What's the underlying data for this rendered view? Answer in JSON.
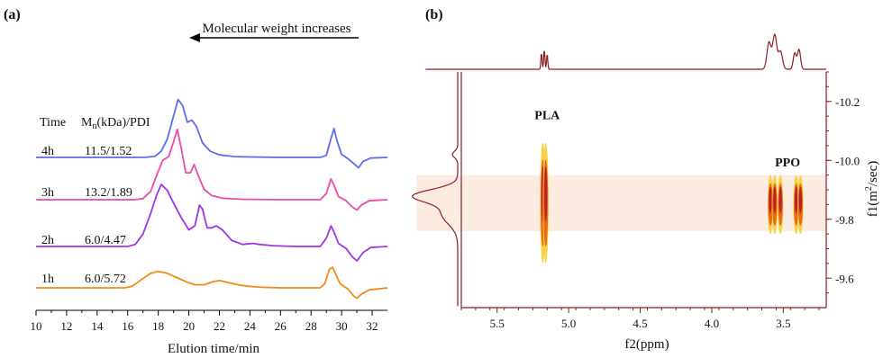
{
  "chart_data": [
    {
      "panel": "(a)",
      "type": "line",
      "xlabel": "Elution time/min",
      "xlim": [
        10,
        33
      ],
      "xticks": [
        "10",
        "12",
        "14",
        "16",
        "18",
        "20",
        "22",
        "24",
        "26",
        "28",
        "30",
        "32"
      ],
      "arrow_label": "Molecular weight increases",
      "table_header": {
        "time": "Time",
        "mn_main": "M",
        "mn_sub": "n",
        "mn_rest": "(kDa)/PDI"
      },
      "series": [
        {
          "name": "4h",
          "label": "11.5/1.52",
          "color": "#5B6CF0",
          "points": [
            [
              10,
              0
            ],
            [
              16.6,
              0
            ],
            [
              17.2,
              0.05
            ],
            [
              17.8,
              0.6
            ],
            [
              18.2,
              3
            ],
            [
              18.6,
              9
            ],
            [
              19.0,
              20
            ],
            [
              19.3,
              28
            ],
            [
              19.6,
              25
            ],
            [
              19.9,
              17
            ],
            [
              20.2,
              18
            ],
            [
              20.5,
              15
            ],
            [
              20.9,
              7
            ],
            [
              21.4,
              3
            ],
            [
              22,
              1.2
            ],
            [
              23,
              0.4
            ],
            [
              24,
              0.2
            ],
            [
              26,
              0
            ],
            [
              28.6,
              0
            ],
            [
              29.0,
              1
            ],
            [
              29.3,
              9
            ],
            [
              29.5,
              14
            ],
            [
              29.7,
              8
            ],
            [
              30.0,
              1.5
            ],
            [
              30.4,
              -0.5
            ],
            [
              30.8,
              -3
            ],
            [
              31.1,
              -5
            ],
            [
              31.4,
              -2
            ],
            [
              31.9,
              -0.3
            ],
            [
              33,
              0
            ]
          ]
        },
        {
          "name": "3h",
          "label": "13.2/1.89",
          "color": "#EC4AA4",
          "points": [
            [
              10,
              0
            ],
            [
              16.4,
              0
            ],
            [
              17.0,
              0.5
            ],
            [
              17.5,
              4
            ],
            [
              17.9,
              12
            ],
            [
              18.3,
              19
            ],
            [
              18.7,
              21
            ],
            [
              19.0,
              28
            ],
            [
              19.25,
              34
            ],
            [
              19.5,
              25
            ],
            [
              19.8,
              13
            ],
            [
              20.1,
              13
            ],
            [
              20.35,
              17
            ],
            [
              20.6,
              12
            ],
            [
              21,
              5
            ],
            [
              21.5,
              2
            ],
            [
              22.2,
              0.7
            ],
            [
              23.5,
              0.2
            ],
            [
              26,
              0
            ],
            [
              28.6,
              0
            ],
            [
              29.0,
              3
            ],
            [
              29.3,
              10
            ],
            [
              29.5,
              7
            ],
            [
              29.8,
              1.5
            ],
            [
              30.3,
              -0.5
            ],
            [
              30.7,
              -3.5
            ],
            [
              31.0,
              -5
            ],
            [
              31.3,
              -2.5
            ],
            [
              31.8,
              -0.5
            ],
            [
              33,
              0
            ]
          ]
        },
        {
          "name": "2h",
          "label": "6.0/4.47",
          "color": "#A034E8",
          "points": [
            [
              10,
              0
            ],
            [
              16.0,
              0
            ],
            [
              16.5,
              1
            ],
            [
              17.0,
              6
            ],
            [
              17.5,
              16
            ],
            [
              17.9,
              25
            ],
            [
              18.2,
              30
            ],
            [
              18.6,
              27
            ],
            [
              19.0,
              21
            ],
            [
              19.5,
              14
            ],
            [
              20.0,
              8
            ],
            [
              20.4,
              10
            ],
            [
              20.7,
              20
            ],
            [
              20.9,
              18
            ],
            [
              21.2,
              9
            ],
            [
              21.5,
              9
            ],
            [
              21.8,
              10
            ],
            [
              22.2,
              8
            ],
            [
              22.8,
              3
            ],
            [
              23.5,
              1
            ],
            [
              24.2,
              1.5
            ],
            [
              24.6,
              1
            ],
            [
              25.5,
              0.4
            ],
            [
              27,
              0
            ],
            [
              28.6,
              0
            ],
            [
              29.0,
              4
            ],
            [
              29.3,
              10
            ],
            [
              29.5,
              7
            ],
            [
              29.8,
              1.5
            ],
            [
              30.3,
              -1
            ],
            [
              30.7,
              -5
            ],
            [
              31.0,
              -7
            ],
            [
              31.4,
              -3
            ],
            [
              31.9,
              -0.5
            ],
            [
              33,
              0
            ]
          ]
        },
        {
          "name": "1h",
          "label": "6.0/5.72",
          "color": "#F08A1A",
          "points": [
            [
              10,
              0
            ],
            [
              15.8,
              0
            ],
            [
              16.3,
              0.8
            ],
            [
              16.9,
              4
            ],
            [
              17.5,
              7
            ],
            [
              18.0,
              8
            ],
            [
              18.6,
              7
            ],
            [
              19.2,
              5
            ],
            [
              19.8,
              3
            ],
            [
              20.4,
              1.5
            ],
            [
              21.0,
              1.5
            ],
            [
              21.6,
              3
            ],
            [
              22.0,
              3.5
            ],
            [
              22.6,
              2.5
            ],
            [
              23.4,
              1.2
            ],
            [
              24.3,
              0.5
            ],
            [
              25,
              0.2
            ],
            [
              26,
              0
            ],
            [
              28.6,
              0
            ],
            [
              28.9,
              2
            ],
            [
              29.2,
              9
            ],
            [
              29.4,
              10
            ],
            [
              29.6,
              7
            ],
            [
              29.9,
              2
            ],
            [
              30.4,
              -0.5
            ],
            [
              30.8,
              -4
            ],
            [
              31.0,
              -5
            ],
            [
              31.3,
              -3
            ],
            [
              31.8,
              -1
            ],
            [
              33,
              0
            ]
          ]
        }
      ]
    },
    {
      "panel": "(b)",
      "type": "heatmap",
      "xlabel": "f2(ppm)",
      "ylabel_main": "f1(m",
      "ylabel_sup": "2",
      "ylabel_rest": "/sec)",
      "xlim": [
        5.75,
        3.2
      ],
      "ylim": [
        -9.5,
        -10.3
      ],
      "xticks": [
        5.5,
        5.0,
        4.5,
        4.0,
        3.5
      ],
      "xtick_labels": [
        "5.5",
        "5.0",
        "4.5",
        "4.0",
        "3.5"
      ],
      "yticks": [
        -10.2,
        -10.0,
        -9.8,
        -9.6
      ],
      "ytick_labels": [
        "-10.2",
        "-10.0",
        "-9.8",
        "-9.6"
      ],
      "highlight_band": [
        -9.95,
        -9.76
      ],
      "annotations": [
        {
          "text": "PLA",
          "x": 5.15,
          "y": -10.14
        },
        {
          "text": "PPO",
          "x": 3.47,
          "y": -9.98
        }
      ],
      "peaks": [
        {
          "name": "PLA",
          "ppm": [
            5.18,
            5.16
          ],
          "f1_range": [
            -10.06,
            -9.65
          ]
        },
        {
          "name": "PPO",
          "ppm": [
            3.59,
            3.56,
            3.52,
            3.41,
            3.38
          ],
          "f1_range": [
            -9.95,
            -9.75
          ]
        }
      ],
      "colors": {
        "axis": "#8A1F1F",
        "band": "#FBEBE0",
        "peak_dark": "#B8202A",
        "peak_mid": "#E86A14",
        "peak_light": "#F6D24A"
      }
    }
  ]
}
